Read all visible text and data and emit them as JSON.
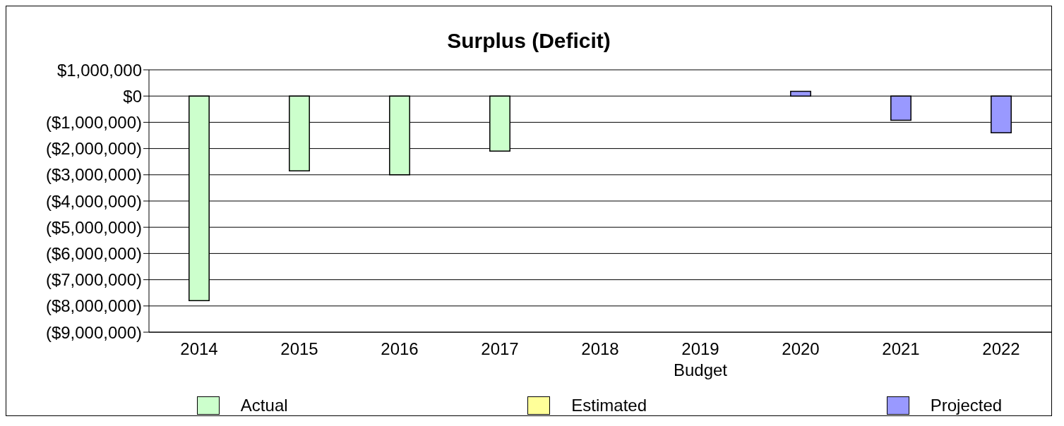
{
  "chart_data": {
    "type": "bar",
    "title": "Surplus (Deficit)",
    "stacked": true,
    "categories": [
      "2014",
      "2015",
      "2016",
      "2017",
      "2018",
      "2019 Budget",
      "2020",
      "2021",
      "2022"
    ],
    "series": [
      {
        "name": "Actual",
        "color": "#ccffcc",
        "values": [
          -7800000,
          -2850000,
          -3000000,
          -2100000,
          null,
          null,
          null,
          null,
          null
        ]
      },
      {
        "name": "Estimated",
        "color": "#ffff99",
        "values": [
          null,
          null,
          null,
          null,
          null,
          null,
          null,
          null,
          null
        ]
      },
      {
        "name": "Projected",
        "color": "#9999ff",
        "values": [
          null,
          null,
          null,
          null,
          null,
          null,
          180000,
          -920000,
          -1400000
        ]
      }
    ],
    "ylim": [
      -9000000,
      1000000
    ],
    "yticks": [
      {
        "value": -9000000,
        "label": "($9,000,000)"
      },
      {
        "value": -8000000,
        "label": "($8,000,000)"
      },
      {
        "value": -7000000,
        "label": "($7,000,000)"
      },
      {
        "value": -6000000,
        "label": "($6,000,000)"
      },
      {
        "value": -5000000,
        "label": "($5,000,000)"
      },
      {
        "value": -4000000,
        "label": "($4,000,000)"
      },
      {
        "value": -3000000,
        "label": "($3,000,000)"
      },
      {
        "value": -2000000,
        "label": "($2,000,000)"
      },
      {
        "value": -1000000,
        "label": "($1,000,000)"
      },
      {
        "value": 0,
        "label": "$0"
      },
      {
        "value": 1000000,
        "label": "$1,000,000"
      }
    ],
    "grid": "y",
    "legend": "bottom"
  }
}
